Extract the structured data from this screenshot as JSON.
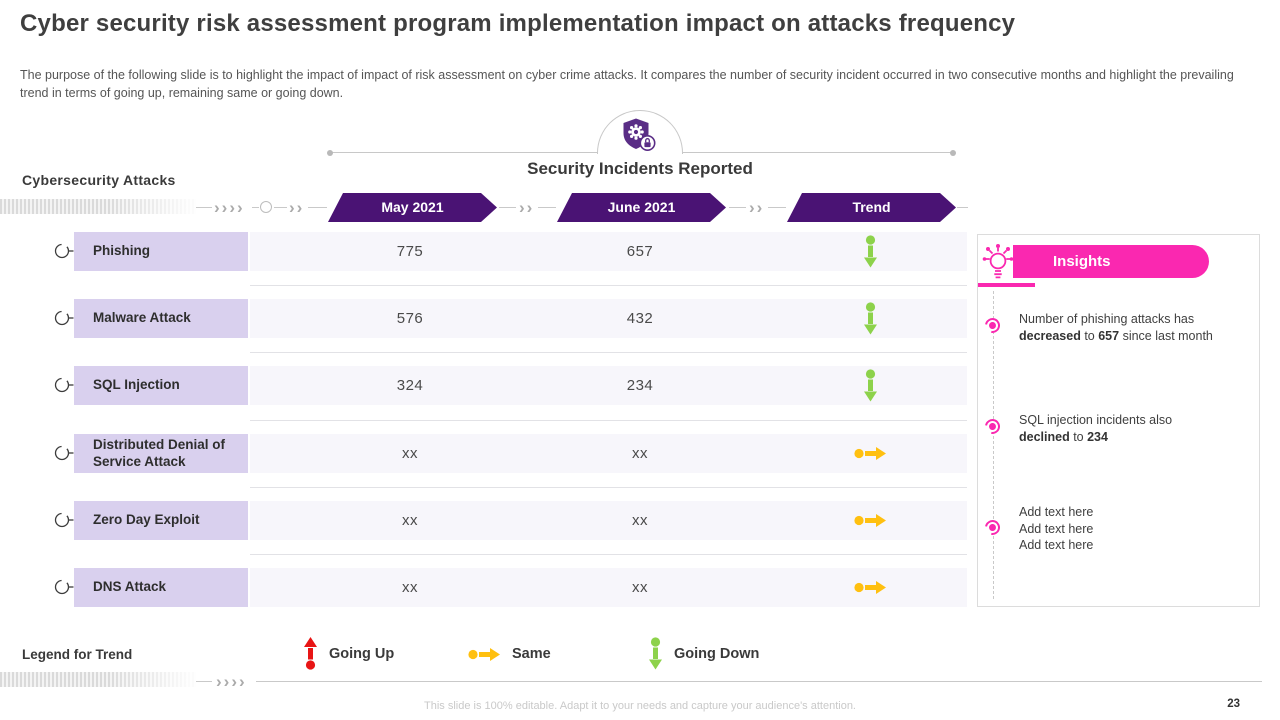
{
  "title": "Cyber security risk assessment program implementation impact on attacks frequency",
  "description": "The purpose of the following slide is to highlight the impact of impact of risk assessment on cyber crime attacks. It compares the number of security incident occurred in two consecutive months and highlight the prevailing trend in terms of going up, remaining same or going down.",
  "header": {
    "section_title": "Security Incidents Reported",
    "icon": "shield-gear-lock-icon"
  },
  "table": {
    "caption": "Cybersecurity Attacks",
    "columns": [
      "May 2021",
      "June 2021",
      "Trend"
    ],
    "rows": [
      {
        "label": "Phishing",
        "may": "775",
        "june": "657",
        "trend": "down"
      },
      {
        "label": "Malware Attack",
        "may": "576",
        "june": "432",
        "trend": "down"
      },
      {
        "label": "SQL Injection",
        "may": "324",
        "june": "234",
        "trend": "down"
      },
      {
        "label": "Distributed Denial of Service Attack",
        "may": "xx",
        "june": "xx",
        "trend": "same"
      },
      {
        "label": "Zero Day Exploit",
        "may": "xx",
        "june": "xx",
        "trend": "same"
      },
      {
        "label": "DNS Attack",
        "may": "xx",
        "june": "xx",
        "trend": "same"
      }
    ]
  },
  "insights": {
    "title": "Insights",
    "icon": "idea-bulb-icon",
    "items": [
      {
        "segments": [
          {
            "text": "Number of phishing attacks has",
            "br": true
          },
          {
            "text": "decreased",
            "bold": true
          },
          {
            "text": " to "
          },
          {
            "text": "657",
            "bold": true
          },
          {
            "text": " since last month"
          }
        ]
      },
      {
        "segments": [
          {
            "text": "SQL injection incidents also",
            "br": true
          },
          {
            "text": "declined",
            "bold": true
          },
          {
            "text": " to "
          },
          {
            "text": "234",
            "bold": true
          }
        ]
      },
      {
        "segments": [
          {
            "text": "Add text here",
            "br": true
          },
          {
            "text": "Add text here",
            "br": true
          },
          {
            "text": "Add text here"
          }
        ]
      }
    ]
  },
  "legend": {
    "caption": "Legend for Trend",
    "items": [
      {
        "icon": "up-arrow-icon",
        "label": "Going Up",
        "color": "#E81515"
      },
      {
        "icon": "same-arrow-icon",
        "label": "Same",
        "color": "#FFC010"
      },
      {
        "icon": "down-arrow-icon",
        "label": "Going Down",
        "color": "#8DD24B"
      }
    ]
  },
  "footer": {
    "note": "This slide is 100% editable. Adapt it to your needs and capture your audience's attention.",
    "page_number": "23"
  },
  "decor": {
    "chevrons_four": "››››",
    "chevrons_two": "››"
  },
  "colors": {
    "accent_purple": "#4A1374",
    "accent_pink": "#FA28B0",
    "label_lavender": "#D9D0EE",
    "row_strip": "#F7F6FB",
    "trend_up": "#E81515",
    "trend_same": "#FFC010",
    "trend_down": "#8DD24B"
  }
}
